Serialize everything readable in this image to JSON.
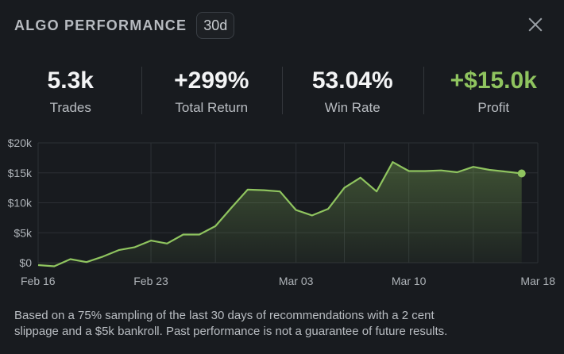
{
  "header": {
    "title": "ALGO PERFORMANCE",
    "period": "30d"
  },
  "stats": [
    {
      "value": "5.3k",
      "label": "Trades"
    },
    {
      "value": "+299%",
      "label": "Total Return"
    },
    {
      "value": "53.04%",
      "label": "Win Rate"
    },
    {
      "value": "+$15.0k",
      "label": "Profit"
    }
  ],
  "colors": {
    "accent": "#8fc45f",
    "background": "#181b1f"
  },
  "chart_data": {
    "type": "area",
    "title": "",
    "xlabel": "",
    "ylabel": "",
    "x_ticks": [
      "Feb 16",
      "Feb 23",
      "Mar 03",
      "Mar 10",
      "Mar 18"
    ],
    "y_ticks": [
      "$0",
      "$5k",
      "$10k",
      "$15k",
      "$20k"
    ],
    "ylim": [
      0,
      20000
    ],
    "grid": true,
    "series": [
      {
        "values": [
          [
            "2024-02-16",
            -400
          ],
          [
            "2024-02-17",
            -600
          ],
          [
            "2024-02-18",
            600
          ],
          [
            "2024-02-19",
            100
          ],
          [
            "2024-02-20",
            1000
          ],
          [
            "2024-02-21",
            2100
          ],
          [
            "2024-02-22",
            2600
          ],
          [
            "2024-02-23",
            3700
          ],
          [
            "2024-02-24",
            3200
          ],
          [
            "2024-02-25",
            4700
          ],
          [
            "2024-02-26",
            4700
          ],
          [
            "2024-02-27",
            6100
          ],
          [
            "2024-02-28",
            9200
          ],
          [
            "2024-02-29",
            12200
          ],
          [
            "2024-03-01",
            12100
          ],
          [
            "2024-03-02",
            11900
          ],
          [
            "2024-03-03",
            8800
          ],
          [
            "2024-03-04",
            7900
          ],
          [
            "2024-03-05",
            9000
          ],
          [
            "2024-03-06",
            12500
          ],
          [
            "2024-03-07",
            14200
          ],
          [
            "2024-03-08",
            11900
          ],
          [
            "2024-03-09",
            16800
          ],
          [
            "2024-03-10",
            15300
          ],
          [
            "2024-03-11",
            15300
          ],
          [
            "2024-03-12",
            15400
          ],
          [
            "2024-03-13",
            15100
          ],
          [
            "2024-03-14",
            16000
          ],
          [
            "2024-03-15",
            15500
          ],
          [
            "2024-03-16",
            15200
          ],
          [
            "2024-03-17",
            14900
          ]
        ]
      }
    ]
  },
  "footer": {
    "line1": "Based on a 75% sampling of the last 30 days of recommendations with a 2 cent",
    "line2": "slippage and a $5k bankroll. Past performance is not a guarantee of future results."
  }
}
